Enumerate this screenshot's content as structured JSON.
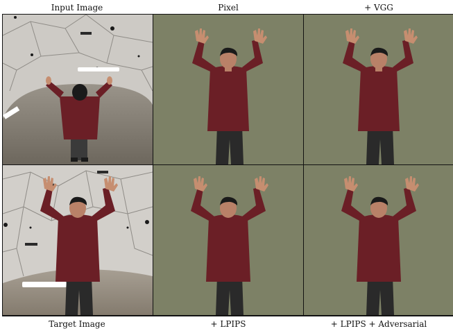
{
  "figure": {
    "top_labels": [
      "Input Image",
      "Pixel",
      "+ VGG"
    ],
    "bottom_labels": [
      "Target Image",
      "+ LPIPS",
      "+ LPIPS + Adversarial"
    ]
  },
  "colors": {
    "backdrop_green": "#7d8166",
    "dome_wall": "#c9c6c1",
    "sweater": "#6b1f26",
    "pants": "#2a2a2a",
    "skin": "#c68e70",
    "hair": "#1a1a1a"
  }
}
